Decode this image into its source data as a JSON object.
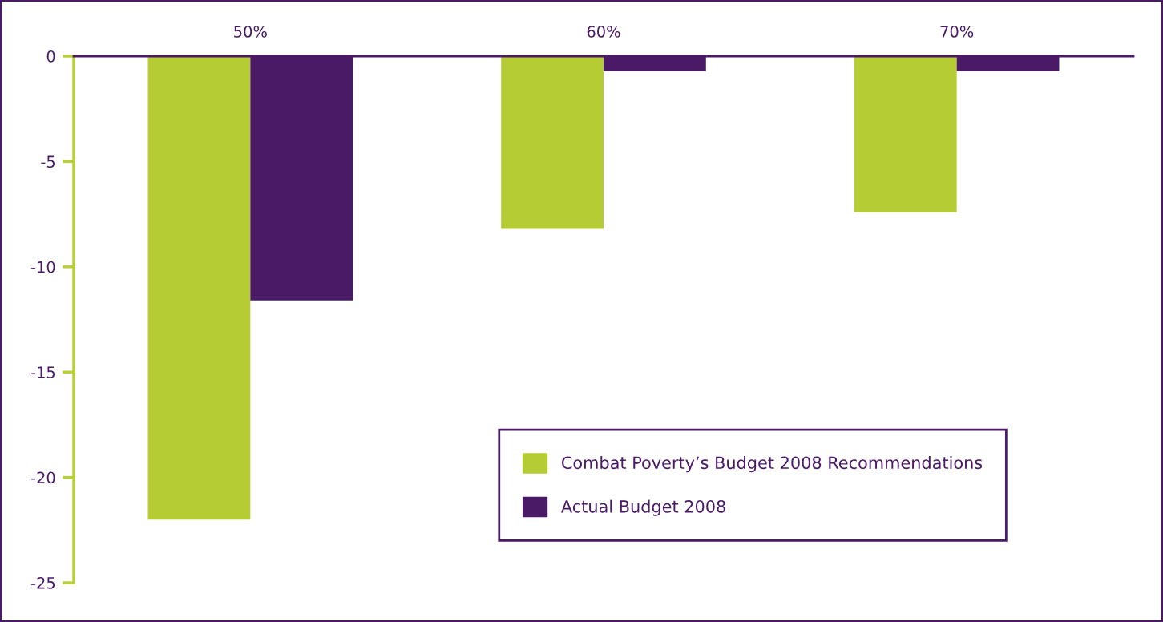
{
  "chart_data": {
    "type": "bar",
    "categories": [
      "50%",
      "60%",
      "70%"
    ],
    "series": [
      {
        "name": "Combat Poverty’s Budget 2008 Recommendations",
        "color": "#b5cc34",
        "values": [
          -22.0,
          -8.2,
          -7.4
        ]
      },
      {
        "name": "Actual Budget 2008",
        "color": "#4a1a67",
        "values": [
          -11.6,
          -0.7,
          -0.7
        ]
      }
    ],
    "ylim": [
      -25,
      0
    ],
    "yticks": [
      0,
      -5,
      -10,
      -15,
      -20,
      -25
    ],
    "grid": false,
    "legend": "bottom right"
  }
}
